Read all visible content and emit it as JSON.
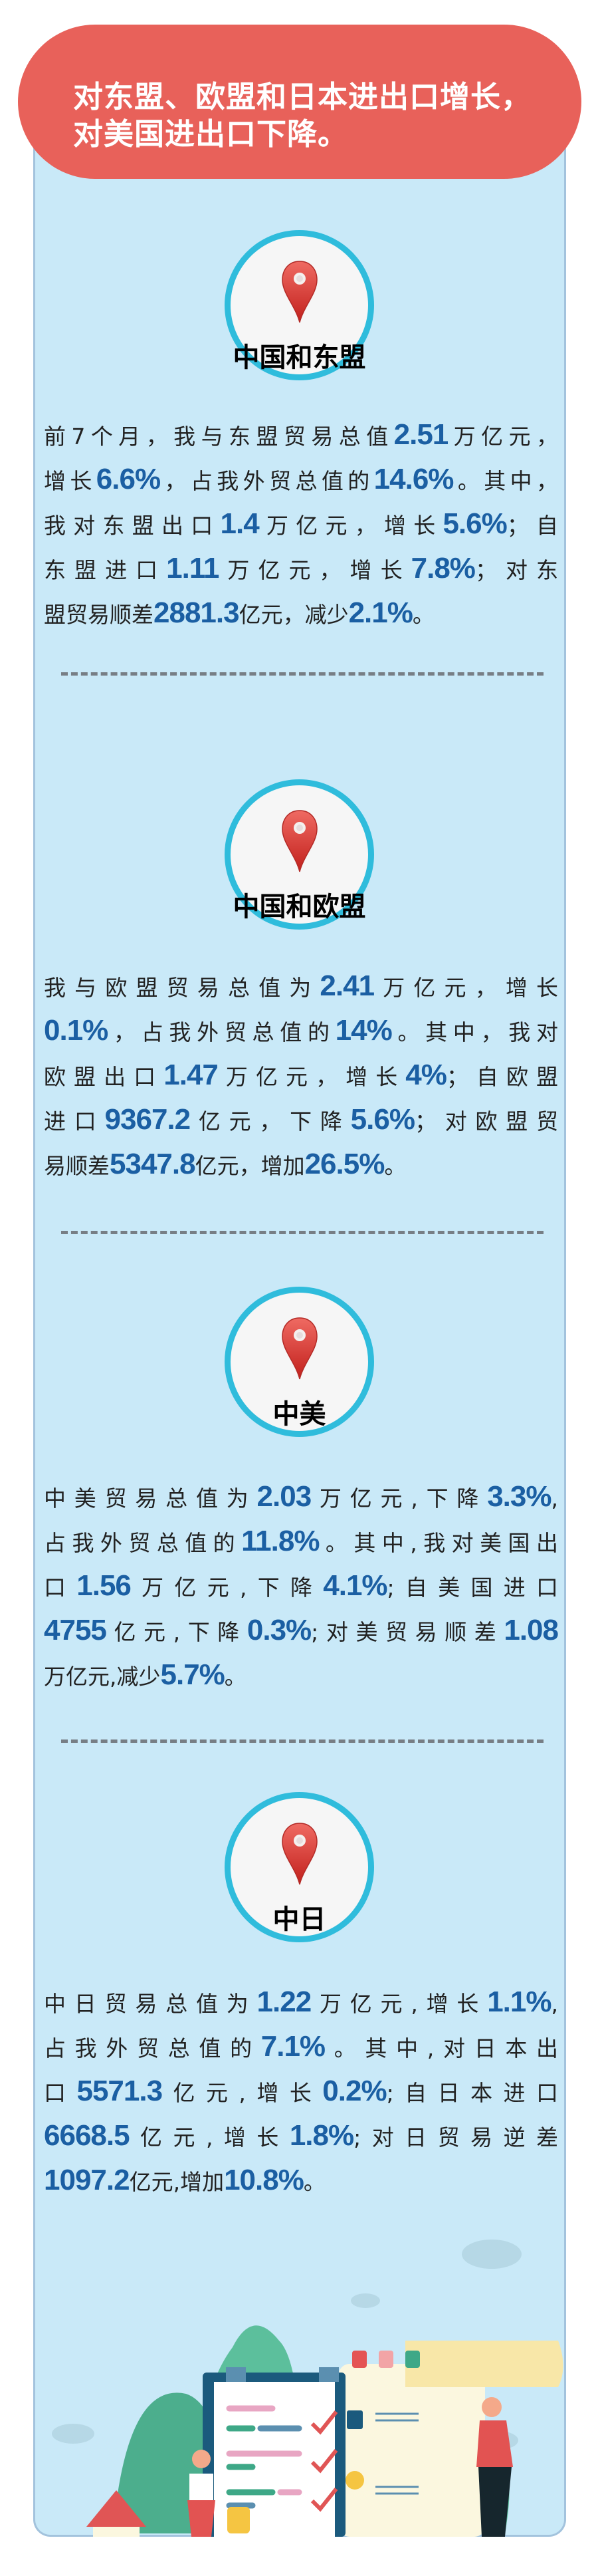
{
  "header": {
    "lines": [
      "对东盟、欧盟和日本进出口增长，",
      "对美国进出口下降。"
    ]
  },
  "colors": {
    "header_bg": "#e8615a",
    "panel_bg": "#c9e9f8",
    "number": "#1b5fa3",
    "circle_border": "#2fbcdc",
    "pin": "#d9352f"
  },
  "sections": [
    {
      "title": "中国和东盟",
      "icon": "map-pin-icon",
      "lines": [
        [
          {
            "t": "前7个月，我与东盟贸易总值"
          },
          {
            "t": "2.51",
            "b": 1
          },
          {
            "t": "万亿元，"
          }
        ],
        [
          {
            "t": "增长"
          },
          {
            "t": "6.6%",
            "b": 1
          },
          {
            "t": "，占我外贸总值的"
          },
          {
            "t": "14.6%",
            "b": 1
          },
          {
            "t": "。其中，"
          }
        ],
        [
          {
            "t": "我对东盟出口"
          },
          {
            "t": "1.4",
            "b": 1
          },
          {
            "t": "万亿元，增长"
          },
          {
            "t": "5.6%",
            "b": 1
          },
          {
            "t": "；自"
          }
        ],
        [
          {
            "t": "东盟进口"
          },
          {
            "t": "1.11",
            "b": 1
          },
          {
            "t": "万亿元，增长"
          },
          {
            "t": "7.8%",
            "b": 1
          },
          {
            "t": "；对东"
          }
        ],
        [
          {
            "t": "盟贸易顺差"
          },
          {
            "t": "2881.3",
            "b": 1
          },
          {
            "t": "亿元，减少"
          },
          {
            "t": "2.1%",
            "b": 1
          },
          {
            "t": "。"
          }
        ]
      ]
    },
    {
      "title": "中国和欧盟",
      "icon": "map-pin-icon",
      "lines": [
        [
          {
            "t": "我与欧盟贸易总值为"
          },
          {
            "t": "2.41",
            "b": 1
          },
          {
            "t": "万亿元，增长"
          }
        ],
        [
          {
            "t": "0.1%",
            "b": 1
          },
          {
            "t": "，占我外贸总值的"
          },
          {
            "t": "14%",
            "b": 1
          },
          {
            "t": "。其中，我对"
          }
        ],
        [
          {
            "t": "欧盟出口"
          },
          {
            "t": "1.47",
            "b": 1
          },
          {
            "t": "万亿元，增长"
          },
          {
            "t": "4%",
            "b": 1
          },
          {
            "t": "；自欧盟"
          }
        ],
        [
          {
            "t": "进口"
          },
          {
            "t": "9367.2",
            "b": 1
          },
          {
            "t": "亿元，下降"
          },
          {
            "t": "5.6%",
            "b": 1
          },
          {
            "t": "；对欧盟贸"
          }
        ],
        [
          {
            "t": "易顺差"
          },
          {
            "t": "5347.8",
            "b": 1
          },
          {
            "t": "亿元，增加"
          },
          {
            "t": "26.5%",
            "b": 1
          },
          {
            "t": "。"
          }
        ]
      ]
    },
    {
      "title": "中美",
      "icon": "map-pin-icon",
      "lines": [
        [
          {
            "t": "中美贸易总值为"
          },
          {
            "t": "2.03",
            "b": 1
          },
          {
            "t": "万亿元,下降"
          },
          {
            "t": "3.3%",
            "b": 1
          },
          {
            "t": ","
          }
        ],
        [
          {
            "t": "占我外贸总值的"
          },
          {
            "t": "11.8%",
            "b": 1
          },
          {
            "t": "。其中,我对美国出"
          }
        ],
        [
          {
            "t": "口"
          },
          {
            "t": "1.56",
            "b": 1
          },
          {
            "t": "万亿元,下降"
          },
          {
            "t": "4.1%",
            "b": 1
          },
          {
            "t": ";自美国进口"
          }
        ],
        [
          {
            "t": "4755",
            "b": 1
          },
          {
            "t": "亿元,下降"
          },
          {
            "t": "0.3%",
            "b": 1
          },
          {
            "t": ";对美贸易顺差"
          },
          {
            "t": "1.08",
            "b": 1
          }
        ],
        [
          {
            "t": "万亿元,减少"
          },
          {
            "t": "5.7%",
            "b": 1
          },
          {
            "t": "。"
          }
        ]
      ]
    },
    {
      "title": "中日",
      "icon": "map-pin-icon",
      "lines": [
        [
          {
            "t": "中日贸易总值为"
          },
          {
            "t": "1.22",
            "b": 1
          },
          {
            "t": "万亿元,增长"
          },
          {
            "t": "1.1%",
            "b": 1
          },
          {
            "t": ","
          }
        ],
        [
          {
            "t": "占我外贸总值的"
          },
          {
            "t": "7.1%",
            "b": 1
          },
          {
            "t": "。其中,对日本出"
          }
        ],
        [
          {
            "t": "口"
          },
          {
            "t": "5571.3",
            "b": 1
          },
          {
            "t": "亿元,增长"
          },
          {
            "t": "0.2%",
            "b": 1
          },
          {
            "t": ";自日本进口"
          }
        ],
        [
          {
            "t": "6668.5",
            "b": 1
          },
          {
            "t": "亿元,增长"
          },
          {
            "t": "1.8%",
            "b": 1
          },
          {
            "t": ";对日贸易逆差"
          }
        ],
        [
          {
            "t": "1097.2",
            "b": 1
          },
          {
            "t": "亿元,增加"
          },
          {
            "t": "10.8%",
            "b": 1
          },
          {
            "t": "。"
          }
        ]
      ]
    }
  ],
  "illustration": {
    "icon": "checklist-illustration"
  }
}
